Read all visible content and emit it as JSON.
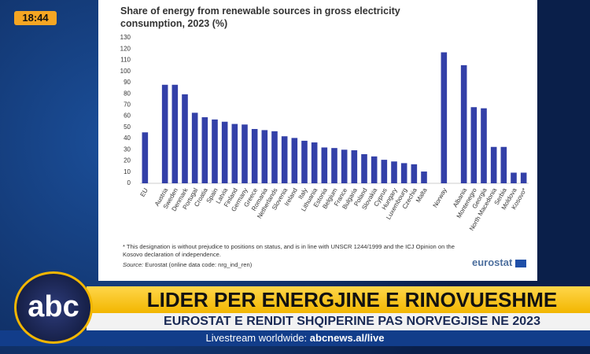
{
  "broadcast": {
    "clock": "18:44",
    "logo": "abc",
    "headline": "LIDER PER ENERGJINE E RINOVUESHME",
    "subheadline": "EUROSTAT E RENDIT SHQIPERINE PAS NORVEGJISE NE 2023",
    "livestream_label": "Livestream worldwide:",
    "livestream_url": "abcnews.al/live"
  },
  "chart_data": {
    "type": "bar",
    "title": "Share of energy from renewable sources in gross electricity consumption, 2023 (%)",
    "categories": [
      "EU",
      null,
      "Austria",
      "Sweden",
      "Denmark",
      "Portugal",
      "Croatia",
      "Spain",
      "Latvia",
      "Finland",
      "Germany",
      "Greece",
      "Romania",
      "Netherlands",
      "Slovenia",
      "Ireland",
      "Italy",
      "Lithuania",
      "Estonia",
      "Belgium",
      "France",
      "Bulgaria",
      "Poland",
      "Slovakia",
      "Cyprus",
      "Hungary",
      "Luxembourg",
      "Czechia",
      "Malta",
      null,
      "Norway",
      null,
      "Albania",
      "Montenegro",
      "Georgia",
      "North Macedonia",
      "Serbia",
      "Moldova",
      "Kosovo*"
    ],
    "values": [
      45.5,
      null,
      88,
      88,
      79.5,
      63,
      59,
      57,
      55,
      53,
      52.5,
      48.5,
      47.5,
      46.5,
      42,
      40.5,
      38,
      36.5,
      32,
      31.5,
      30,
      29.5,
      26,
      24,
      21,
      19.5,
      18,
      17,
      10.5,
      null,
      117,
      null,
      105.5,
      68,
      67,
      32.5,
      32.5,
      9.5,
      9.5
    ],
    "color": "#3340a8",
    "ylim": [
      0,
      130
    ],
    "yticks": [
      0,
      10,
      20,
      30,
      40,
      50,
      60,
      70,
      80,
      90,
      100,
      110,
      120,
      130
    ],
    "grid": false,
    "footnote": "* This designation is without prejudice to positions on status, and is in line with UNSCR 1244/1999 and the ICJ Opinion on the Kosovo declaration of independence.",
    "source_label": "Source:",
    "source": "Eurostat (online data code: nrg_ind_ren)",
    "logo": "eurostat"
  }
}
